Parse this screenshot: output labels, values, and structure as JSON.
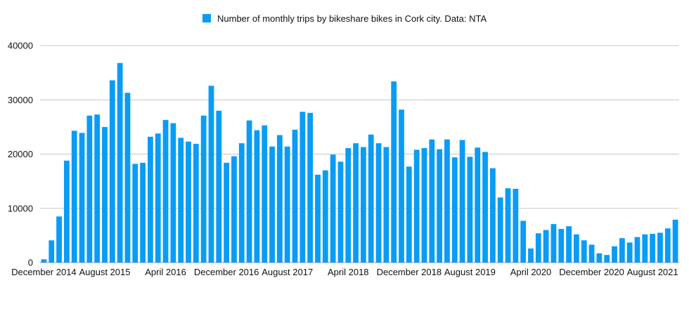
{
  "chart_data": {
    "type": "bar",
    "title": "",
    "xlabel": "",
    "ylabel": "",
    "ylim": [
      0,
      40000
    ],
    "yticks": [
      0,
      10000,
      20000,
      30000,
      40000
    ],
    "grid": true,
    "legend_position": "top",
    "legend": "Number of monthly trips by bikeshare bikes in Cork city. Data: NTA",
    "bar_color": "#0a9cf5",
    "x_tick_labels": [
      {
        "index": 0,
        "label": "December 2014"
      },
      {
        "index": 8,
        "label": "August 2015"
      },
      {
        "index": 16,
        "label": "April 2016"
      },
      {
        "index": 24,
        "label": "December 2016"
      },
      {
        "index": 32,
        "label": "August 2017"
      },
      {
        "index": 40,
        "label": "April 2018"
      },
      {
        "index": 48,
        "label": "December 2018"
      },
      {
        "index": 56,
        "label": "August 2019"
      },
      {
        "index": 64,
        "label": "April 2020"
      },
      {
        "index": 72,
        "label": "December 2020"
      },
      {
        "index": 80,
        "label": "August 2021"
      }
    ],
    "series": [
      {
        "values": [
          600,
          4100,
          8500,
          18800,
          24300,
          23900,
          27100,
          27300,
          25000,
          33600,
          36800,
          31300,
          18200,
          18400,
          23200,
          23800,
          26300,
          25700,
          23000,
          22300,
          21900,
          27100,
          32600,
          28000,
          18400,
          19600,
          22000,
          26200,
          24400,
          25300,
          21400,
          23500,
          21400,
          24500,
          27800,
          27600,
          16200,
          17000,
          19900,
          18600,
          21100,
          22000,
          21300,
          23600,
          22000,
          21300,
          33400,
          28200,
          17700,
          20800,
          21100,
          22700,
          20900,
          22700,
          19400,
          22600,
          19500,
          21200,
          20400,
          17400,
          12000,
          13700,
          13600,
          7700,
          2600,
          5400,
          6000,
          7100,
          6200,
          6700,
          5200,
          4100,
          3300,
          1700,
          1400,
          3000,
          4500,
          3700,
          4700,
          5200,
          5300,
          5500,
          6300,
          7900
        ]
      }
    ]
  }
}
